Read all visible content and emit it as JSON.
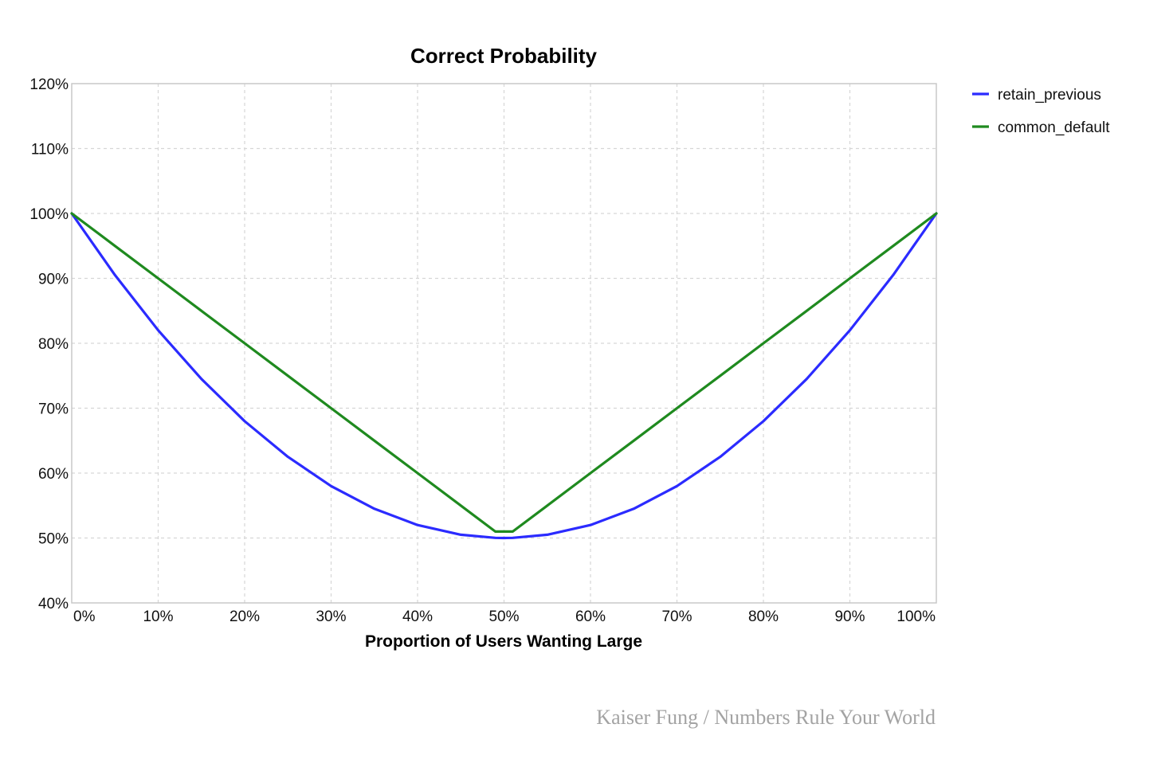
{
  "chart_data": {
    "type": "line",
    "title": "Correct Probability",
    "xlabel": "Proportion of Users Wanting Large",
    "ylabel": "",
    "xlim": [
      0,
      100
    ],
    "ylim": [
      40,
      120
    ],
    "x_ticks": [
      0,
      10,
      20,
      30,
      40,
      50,
      60,
      70,
      80,
      90,
      100
    ],
    "x_tick_labels": [
      "0%",
      "10%",
      "20%",
      "30%",
      "40%",
      "50%",
      "60%",
      "70%",
      "80%",
      "90%",
      "100%"
    ],
    "y_ticks": [
      40,
      50,
      60,
      70,
      80,
      90,
      100,
      110,
      120
    ],
    "y_tick_labels": [
      "40%",
      "50%",
      "60%",
      "70%",
      "80%",
      "90%",
      "100%",
      "110%",
      "120%"
    ],
    "grid": true,
    "legend_position": "top-right, outside plot",
    "x": [
      0,
      5,
      10,
      15,
      20,
      25,
      30,
      35,
      40,
      45,
      49,
      50,
      51,
      55,
      60,
      65,
      70,
      75,
      80,
      85,
      90,
      95,
      100
    ],
    "series": [
      {
        "name": "retain_previous",
        "color": "#2b2bff",
        "values": [
          100,
          90.5,
          82,
          74.5,
          68,
          62.5,
          58,
          54.5,
          52,
          50.5,
          50.02,
          50,
          50.02,
          50.5,
          52,
          54.5,
          58,
          62.5,
          68,
          74.5,
          82,
          90.5,
          100
        ]
      },
      {
        "name": "common_default",
        "color": "#1f8a1f",
        "values": [
          100,
          95,
          90,
          85,
          80,
          75,
          70,
          65,
          60,
          55,
          51,
          51,
          51,
          55,
          60,
          65,
          70,
          75,
          80,
          85,
          90,
          95,
          100
        ]
      }
    ]
  },
  "credit": "Kaiser Fung / Numbers Rule Your World"
}
